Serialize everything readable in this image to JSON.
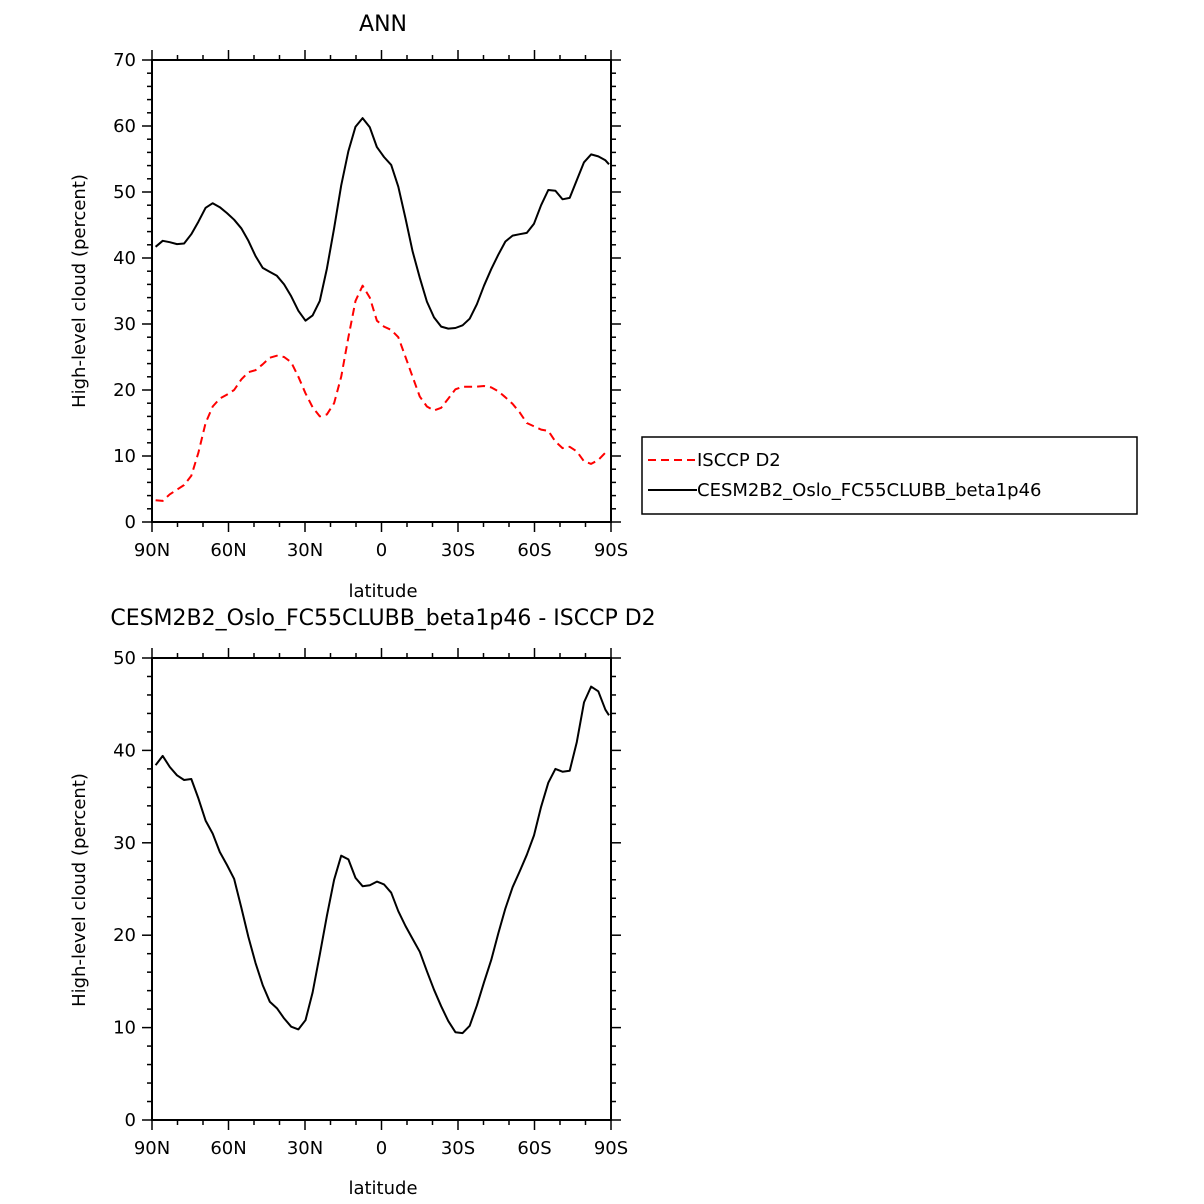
{
  "chart_data": [
    {
      "type": "line",
      "title": "ANN",
      "xlabel": "latitude",
      "ylabel": "High-level cloud (percent)",
      "xlim": [
        -90,
        90
      ],
      "ylim": [
        0,
        70
      ],
      "x_ticks": [
        -90,
        -60,
        -30,
        0,
        30,
        60,
        90
      ],
      "x_tick_labels": [
        "90N",
        "60N",
        "30N",
        "0",
        "30S",
        "60S",
        "90S"
      ],
      "y_ticks": [
        0,
        10,
        20,
        30,
        40,
        50,
        60,
        70
      ],
      "y_tick_labels": [
        "0",
        "10",
        "20",
        "30",
        "40",
        "50",
        "60",
        "70"
      ],
      "grid": false,
      "legend_position": "right",
      "series": [
        {
          "name": "ISCCP D2",
          "color": "#ff0000",
          "dash": "dashed",
          "x": [
            -88.6,
            -85.8,
            -83,
            -80.2,
            -77.4,
            -74.6,
            -71.8,
            -69,
            -66.2,
            -63.4,
            -60.6,
            -57.8,
            -55,
            -52.2,
            -49.4,
            -46.6,
            -43.8,
            -41,
            -38.2,
            -35.4,
            -32.6,
            -29.8,
            -27,
            -24.2,
            -21.4,
            -18.6,
            -15.8,
            -13,
            -10.2,
            -7.4,
            -4.6,
            -1.8,
            1,
            3.8,
            6.6,
            9.4,
            12.2,
            15,
            17.8,
            20.6,
            23.4,
            26.2,
            29,
            31.8,
            34.6,
            37.4,
            40.2,
            43,
            45.8,
            48.6,
            51.4,
            54.2,
            57,
            59.8,
            62.6,
            65.4,
            68.2,
            71,
            73.8,
            76.6,
            79.4,
            82.2,
            85,
            87.8,
            89.2
          ],
          "y": [
            3.3,
            3.2,
            4.2,
            4.9,
            5.6,
            7,
            10.5,
            15,
            17.5,
            18.7,
            19.3,
            20,
            21.6,
            22.7,
            23,
            23.9,
            24.9,
            25.2,
            25,
            24.2,
            22,
            19.5,
            17.4,
            16,
            16.3,
            18,
            22,
            28,
            33.5,
            35.8,
            34,
            30.5,
            29.6,
            29.1,
            28,
            25,
            22,
            19,
            17.5,
            16.9,
            17.3,
            18.7,
            20.1,
            20.5,
            20.5,
            20.5,
            20.6,
            20.4,
            19.8,
            18.9,
            17.9,
            16.6,
            15,
            14.5,
            14,
            13.8,
            12.2,
            11.2,
            11.4,
            10.7,
            9.2,
            8.8,
            9.4,
            10.5,
            10.8
          ]
        },
        {
          "name": "CESM2B2_Oslo_FC55CLUBB_beta1p46",
          "color": "#000000",
          "dash": "solid",
          "x": [
            -88.6,
            -85.8,
            -83,
            -80.2,
            -77.4,
            -74.6,
            -71.8,
            -69,
            -66.2,
            -63.4,
            -60.6,
            -57.8,
            -55,
            -52.2,
            -49.4,
            -46.6,
            -43.8,
            -41,
            -38.2,
            -35.4,
            -32.6,
            -29.8,
            -27,
            -24.2,
            -21.4,
            -18.6,
            -15.8,
            -13,
            -10.2,
            -7.4,
            -4.6,
            -1.8,
            1,
            3.8,
            6.6,
            9.4,
            12.2,
            15,
            17.8,
            20.6,
            23.4,
            26.2,
            29,
            31.8,
            34.6,
            37.4,
            40.2,
            43,
            45.8,
            48.6,
            51.4,
            54.2,
            57,
            59.8,
            62.6,
            65.4,
            68.2,
            71,
            73.8,
            76.6,
            79.4,
            82.2,
            85,
            87.8,
            89.2
          ],
          "y": [
            41.7,
            42.6,
            42.4,
            42.1,
            42.2,
            43.6,
            45.5,
            47.6,
            48.3,
            47.7,
            46.8,
            45.8,
            44.5,
            42.6,
            40.3,
            38.5,
            37.9,
            37.3,
            36,
            34.2,
            32,
            30.5,
            31.3,
            33.5,
            38.4,
            44.5,
            51,
            56.2,
            59.9,
            61.2,
            59.8,
            56.8,
            55.3,
            54.1,
            50.8,
            46,
            41,
            37,
            33.4,
            31,
            29.6,
            29.3,
            29.4,
            29.8,
            30.8,
            33,
            35.8,
            38.3,
            40.5,
            42.5,
            43.4,
            43.6,
            43.8,
            45.2,
            48,
            50.3,
            50.2,
            48.9,
            49.1,
            51.8,
            54.5,
            55.7,
            55.4,
            54.8,
            54.2
          ]
        }
      ]
    },
    {
      "type": "line",
      "title": "CESM2B2_Oslo_FC55CLUBB_beta1p46 - ISCCP D2",
      "xlabel": "latitude",
      "ylabel": "High-level cloud (percent)",
      "xlim": [
        -90,
        90
      ],
      "ylim": [
        0,
        50
      ],
      "x_ticks": [
        -90,
        -60,
        -30,
        0,
        30,
        60,
        90
      ],
      "x_tick_labels": [
        "90N",
        "60N",
        "30N",
        "0",
        "30S",
        "60S",
        "90S"
      ],
      "y_ticks": [
        0,
        10,
        20,
        30,
        40,
        50
      ],
      "y_tick_labels": [
        "0",
        "10",
        "20",
        "30",
        "40",
        "50"
      ],
      "grid": false,
      "series": [
        {
          "color": "#000000",
          "dash": "solid",
          "x": [
            -88.6,
            -85.8,
            -83,
            -80.2,
            -77.4,
            -74.6,
            -71.8,
            -69,
            -66.2,
            -63.4,
            -60.6,
            -57.8,
            -55,
            -52.2,
            -49.4,
            -46.6,
            -43.8,
            -41,
            -38.2,
            -35.4,
            -32.6,
            -29.8,
            -27,
            -24.2,
            -21.4,
            -18.6,
            -15.8,
            -13,
            -10.2,
            -7.4,
            -4.6,
            -1.8,
            1,
            3.8,
            6.6,
            9.4,
            12.2,
            15,
            17.8,
            20.6,
            23.4,
            26.2,
            29,
            31.8,
            34.6,
            37.4,
            40.2,
            43,
            45.8,
            48.6,
            51.4,
            54.2,
            57,
            59.8,
            62.6,
            65.4,
            68.2,
            71,
            73.8,
            76.6,
            79.4,
            82.2,
            85,
            87.8,
            89.2
          ],
          "y": [
            38.4,
            39.4,
            38.2,
            37.3,
            36.8,
            36.9,
            34.8,
            32.4,
            31,
            29,
            27.6,
            26.1,
            23,
            19.8,
            17,
            14.6,
            12.8,
            12.1,
            11,
            10.1,
            9.8,
            10.8,
            13.8,
            17.9,
            22.1,
            26,
            28.6,
            28.2,
            26.2,
            25.3,
            25.4,
            25.8,
            25.5,
            24.6,
            22.6,
            21,
            19.6,
            18.2,
            16.1,
            14.1,
            12.3,
            10.7,
            9.5,
            9.4,
            10.2,
            12.4,
            14.9,
            17.3,
            20.2,
            22.9,
            25.2,
            26.9,
            28.7,
            30.8,
            33.9,
            36.5,
            38,
            37.7,
            37.8,
            40.9,
            45.2,
            46.9,
            46.4,
            44.4,
            43.8
          ]
        }
      ]
    }
  ]
}
